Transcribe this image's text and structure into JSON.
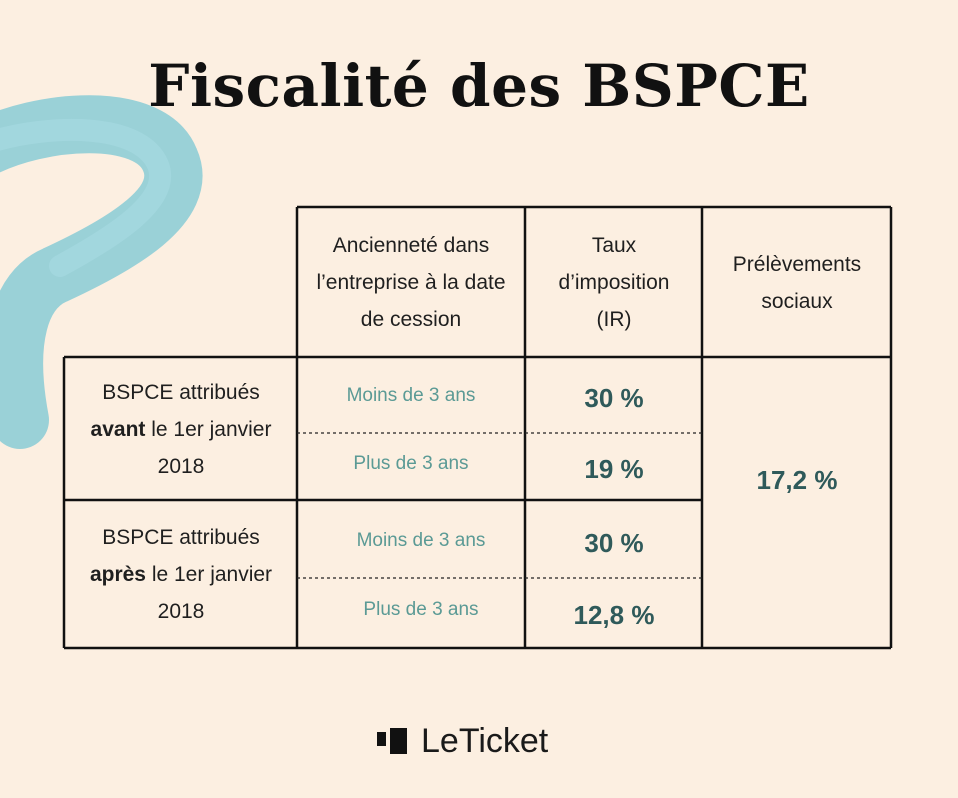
{
  "title": "Fiscalité des BSPCE",
  "headers": {
    "anciennete": "Ancienneté dans l’entreprise à la date de cession",
    "taux": "Taux d’imposition (IR)",
    "prelevements": "Prélèvements sociaux"
  },
  "rows": [
    {
      "label_pre": "BSPCE attribués",
      "label_bold": "avant",
      "label_post": "le 1er janvier 2018"
    },
    {
      "label_pre": "BSPCE attribués",
      "label_bold": "après",
      "label_post": "le 1er janvier 2018"
    }
  ],
  "durations": [
    "Moins de 3 ans",
    "Plus de 3 ans",
    "Moins de 3 ans",
    "Plus de 3 ans"
  ],
  "rates": [
    "30 %",
    "19 %",
    "30 %",
    "12,8 %"
  ],
  "prelevements_value": "17,2 %",
  "brand": {
    "name": "LeTicket"
  },
  "colors": {
    "background": "#fcefe1",
    "brush": "#8fcdd6",
    "duration_text": "#5b9a95",
    "rate_text": "#2f5a5a"
  }
}
